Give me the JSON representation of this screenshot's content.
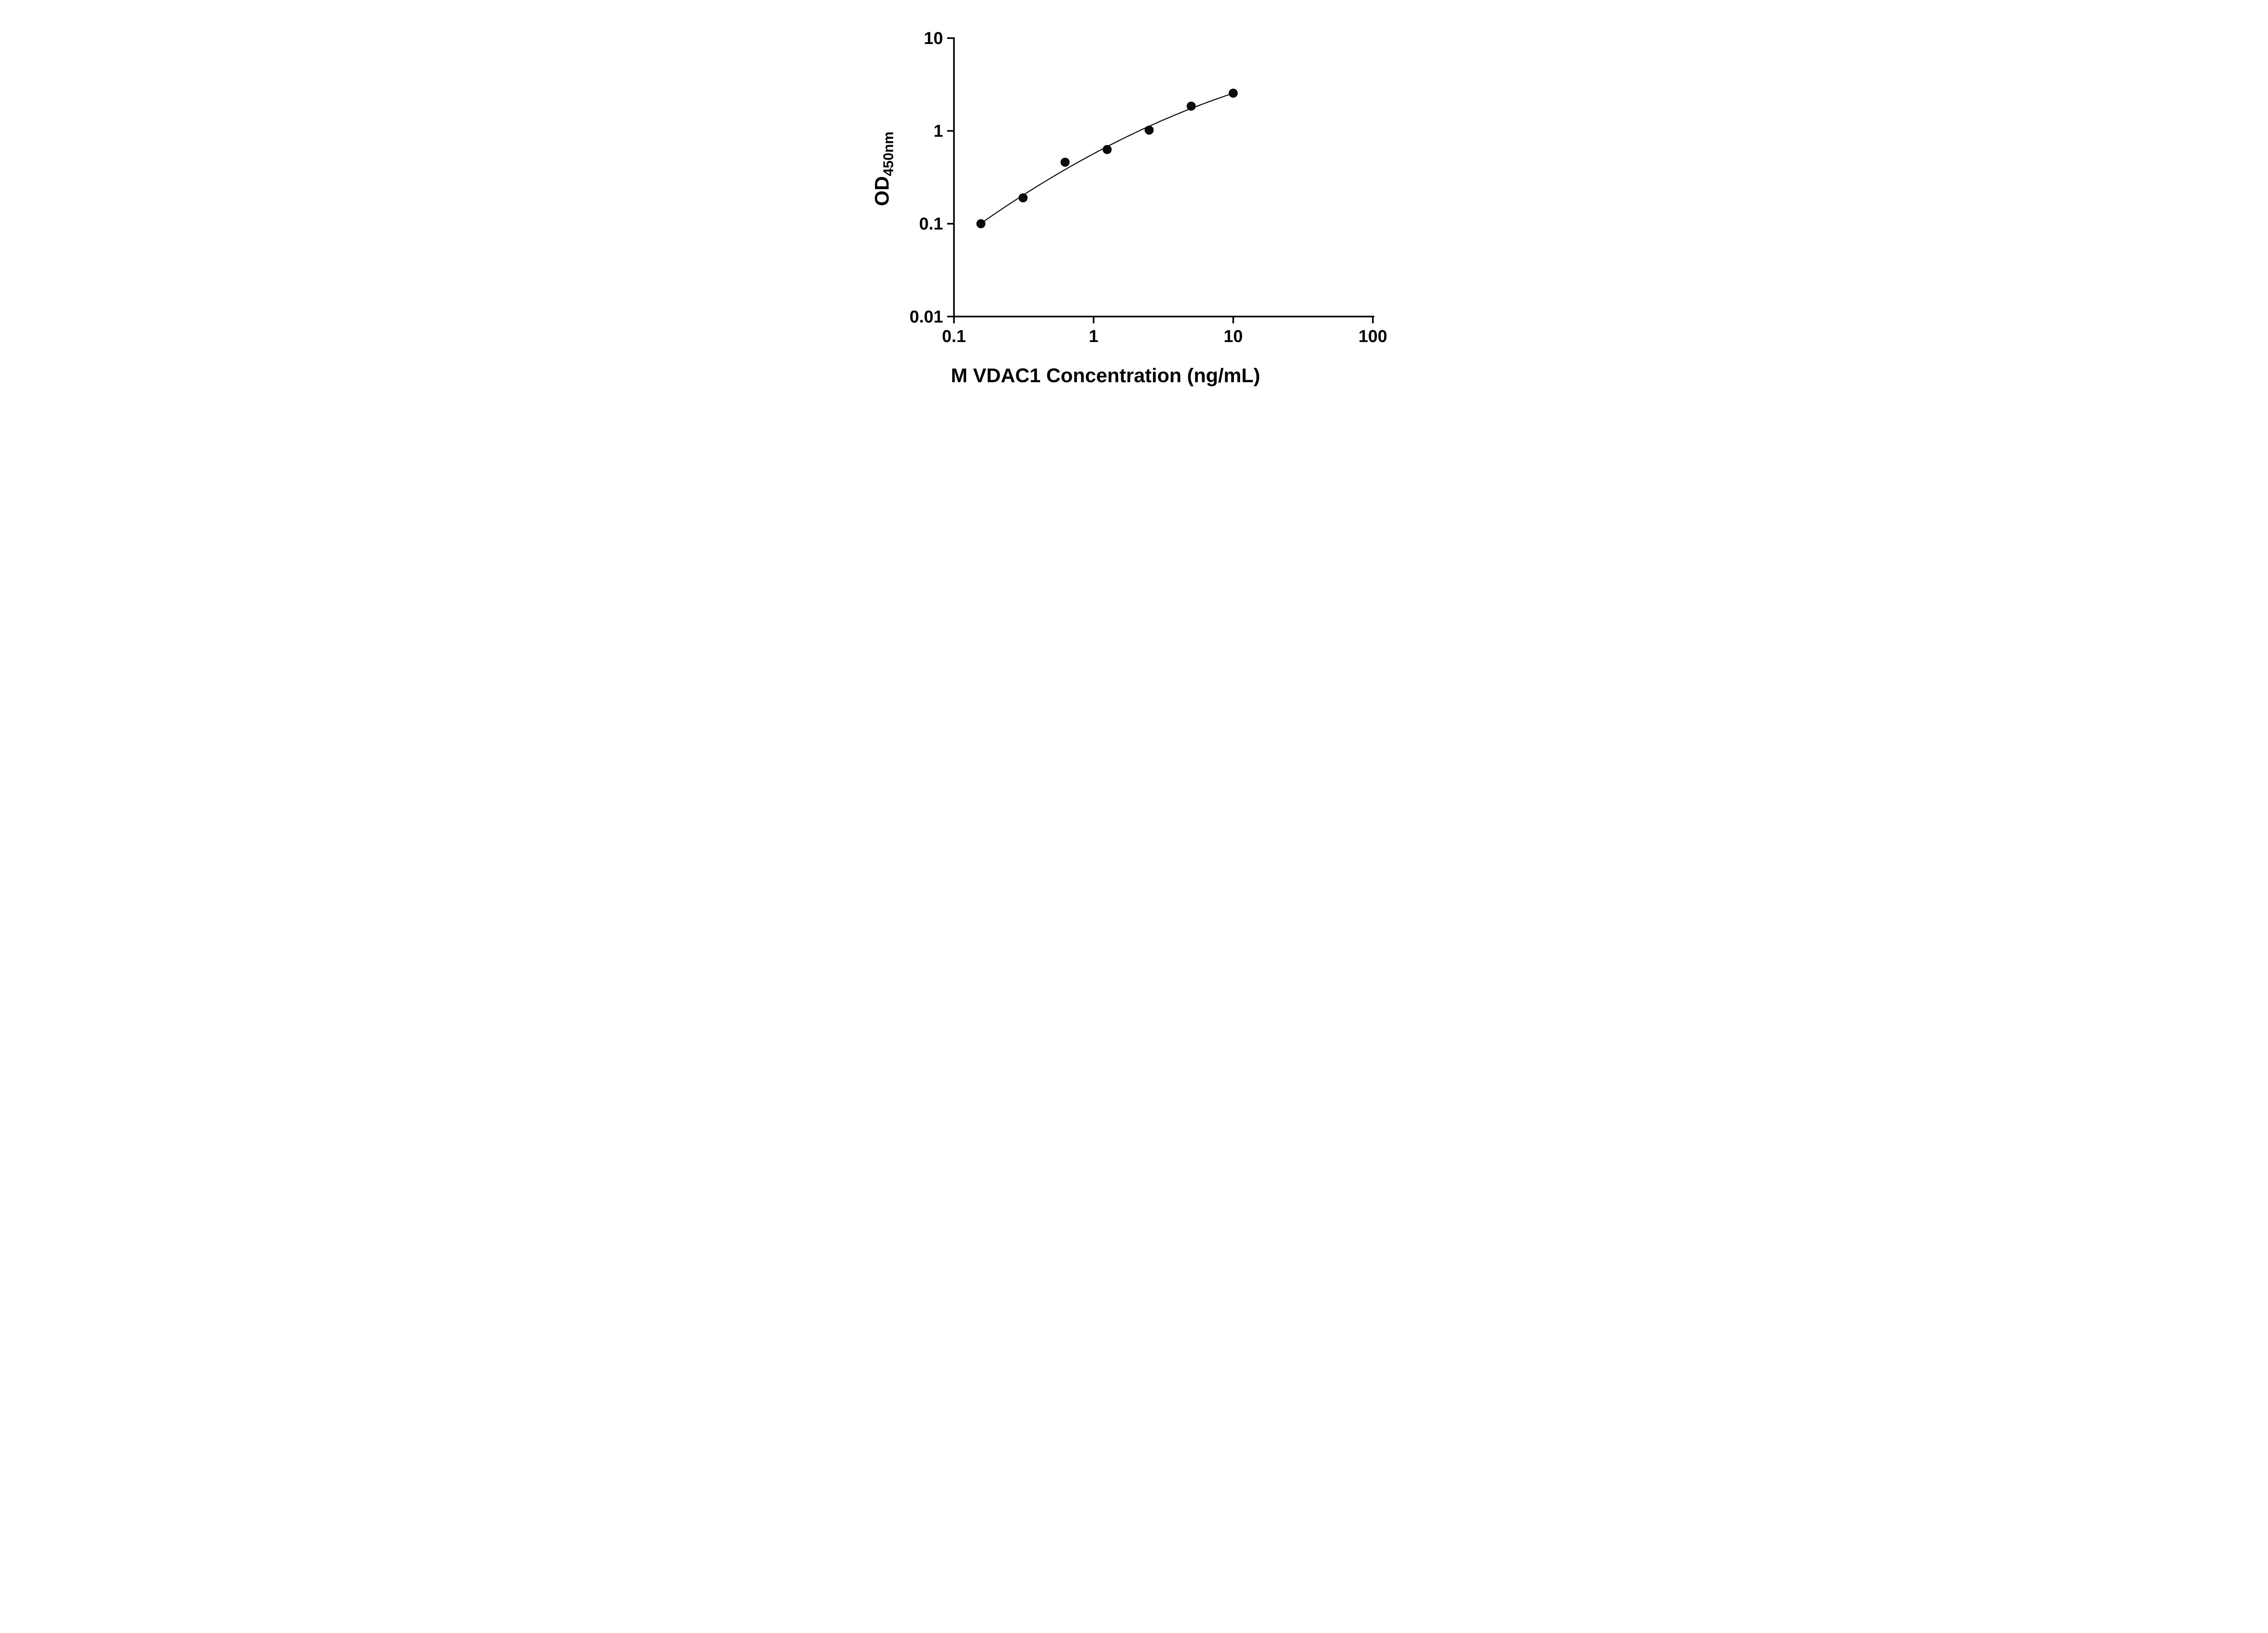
{
  "chart_data": {
    "type": "scatter",
    "x": [
      0.156,
      0.3125,
      0.625,
      1.25,
      2.5,
      5,
      10
    ],
    "y": [
      0.1,
      0.19,
      0.46,
      0.63,
      1.02,
      1.85,
      2.55
    ],
    "xlabel": "M VDAC1 Concentration (ng/mL)",
    "ylabel_main": "OD",
    "ylabel_sub": "450nm",
    "x_scale": "log",
    "y_scale": "log",
    "xlim": [
      0.1,
      100
    ],
    "ylim": [
      0.01,
      10
    ],
    "x_ticks": [
      "0.1",
      "1",
      "10",
      "100"
    ],
    "y_ticks": [
      "0.01",
      "0.1",
      "1",
      "10"
    ],
    "grid": false,
    "legend": false,
    "curve_style": "smooth fit through points (log-log)",
    "marker_color": "#0a0a0a",
    "line_color": "#0a0a0a",
    "axis_color": "#000000"
  }
}
